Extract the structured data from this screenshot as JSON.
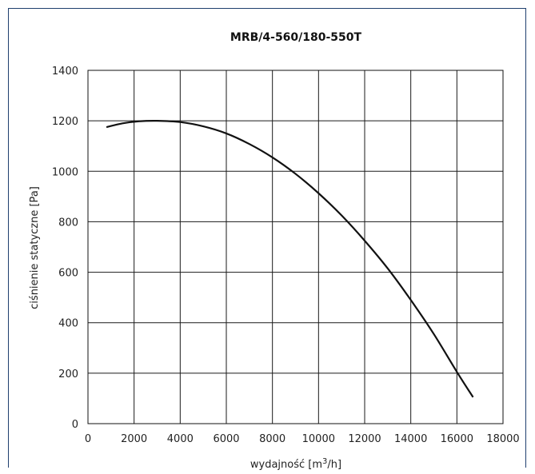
{
  "chart_data": {
    "type": "line",
    "title": "MRB/4-560/180-550T",
    "xlabel": "wydajność [m",
    "xlabel_sup": "3",
    "xlabel_suffix": "/h]",
    "ylabel": "ciśnienie statyczne [Pa]",
    "xlim": [
      0,
      18000
    ],
    "ylim": [
      0,
      1400
    ],
    "x_ticks": [
      0,
      2000,
      4000,
      6000,
      8000,
      10000,
      12000,
      14000,
      16000,
      18000
    ],
    "y_ticks": [
      0,
      200,
      400,
      600,
      800,
      1000,
      1200,
      1400
    ],
    "x_tick_labels": [
      "0",
      "2000",
      "4000",
      "6000",
      "8000",
      "10000",
      "12000",
      "14000",
      "16000",
      "18000"
    ],
    "y_tick_labels": [
      "0",
      "200",
      "400",
      "600",
      "800",
      "1000",
      "1200",
      "1400"
    ],
    "grid": true,
    "series": [
      {
        "x": [
          800,
          1500,
          2200,
          3000,
          4000,
          5000,
          6000,
          7000,
          8000,
          9000,
          10000,
          11000,
          12000,
          13000,
          14000,
          15000,
          16000,
          16700
        ],
        "y": [
          1175,
          1190,
          1198,
          1200,
          1195,
          1178,
          1150,
          1108,
          1055,
          990,
          913,
          825,
          725,
          615,
          490,
          355,
          205,
          105
        ]
      }
    ]
  }
}
